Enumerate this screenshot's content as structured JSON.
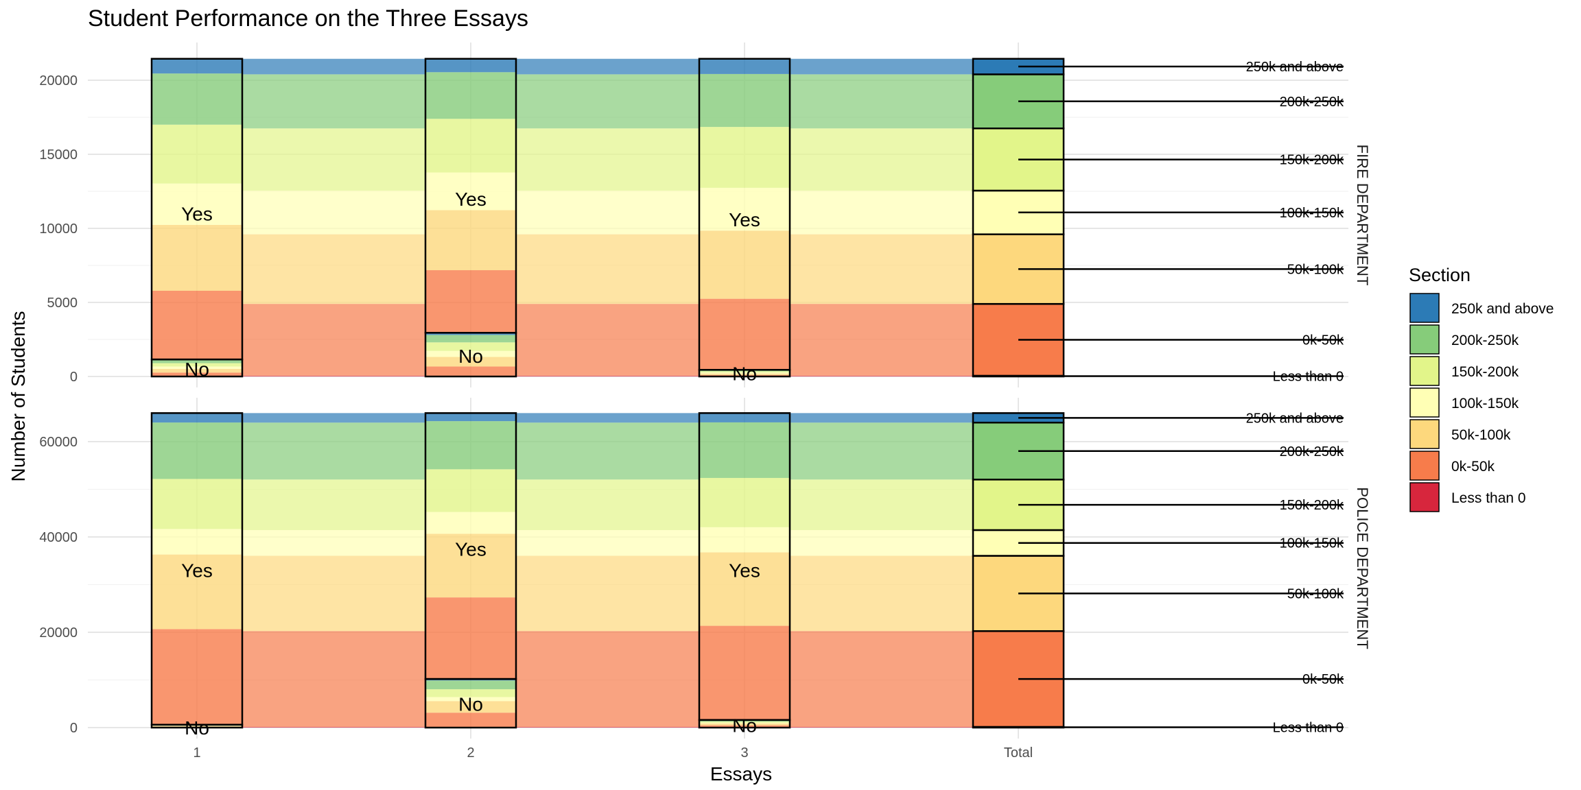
{
  "chart_data": {
    "type": "alluvial",
    "title": "Student Performance on the Three Essays",
    "xlabel": "Essays",
    "ylabel": "Number of Students",
    "x_categories": [
      "1",
      "2",
      "3",
      "Total"
    ],
    "legend": {
      "title": "Section",
      "placement": "right",
      "entries": [
        {
          "label": "250k and above",
          "color": "#2c7bb6"
        },
        {
          "label": "200k-250k",
          "color": "#86cc7a"
        },
        {
          "label": "150k-200k",
          "color": "#e2f58a"
        },
        {
          "label": "100k-150k",
          "color": "#ffffb5"
        },
        {
          "label": "50k-100k",
          "color": "#fdd87d"
        },
        {
          "label": "0k-50k",
          "color": "#f77c4b"
        },
        {
          "label": "Less than 0",
          "color": "#d7263d"
        }
      ]
    },
    "panels": [
      {
        "strip": "FIRE DEPARTMENT",
        "ylim": [
          0,
          21500
        ],
        "yticks": [
          0,
          5000,
          10000,
          15000,
          20000
        ],
        "strata": {
          "1": {
            "No": 1150,
            "Yes": 20300
          },
          "2": {
            "No": 2950,
            "Yes": 18500
          },
          "3": {
            "No": 450,
            "Yes": 21000
          }
        },
        "total_segments": [
          {
            "label": "Less than 0",
            "value": 50
          },
          {
            "label": "0k-50k",
            "value": 4850
          },
          {
            "label": "50k-100k",
            "value": 4700
          },
          {
            "label": "100k-150k",
            "value": 2950
          },
          {
            "label": "150k-200k",
            "value": 4200
          },
          {
            "label": "200k-250k",
            "value": 3650
          },
          {
            "label": "250k and above",
            "value": 1050
          }
        ],
        "annotations": {
          "1": {
            "Yes": 11000,
            "No": 500
          },
          "2": {
            "Yes": 12000,
            "No": 1400
          },
          "3": {
            "Yes": 10600,
            "No": 200
          }
        }
      },
      {
        "strip": "POLICE DEPARTMENT",
        "ylim": [
          0,
          66000
        ],
        "yticks": [
          0,
          20000,
          40000,
          60000
        ],
        "strata": {
          "1": {
            "No": 600,
            "Yes": 65400
          },
          "2": {
            "No": 10200,
            "Yes": 55800
          },
          "3": {
            "No": 1600,
            "Yes": 64400
          }
        },
        "total_segments": [
          {
            "label": "Less than 0",
            "value": 150
          },
          {
            "label": "0k-50k",
            "value": 20100
          },
          {
            "label": "50k-100k",
            "value": 15800
          },
          {
            "label": "100k-150k",
            "value": 5400
          },
          {
            "label": "150k-200k",
            "value": 10600
          },
          {
            "label": "200k-250k",
            "value": 11950
          },
          {
            "label": "250k and above",
            "value": 2000
          }
        ],
        "annotations": {
          "1": {
            "Yes": 33000,
            "No": 0
          },
          "2": {
            "Yes": 37500,
            "No": 5000
          },
          "3": {
            "Yes": 33000,
            "No": 500
          }
        }
      }
    ]
  }
}
